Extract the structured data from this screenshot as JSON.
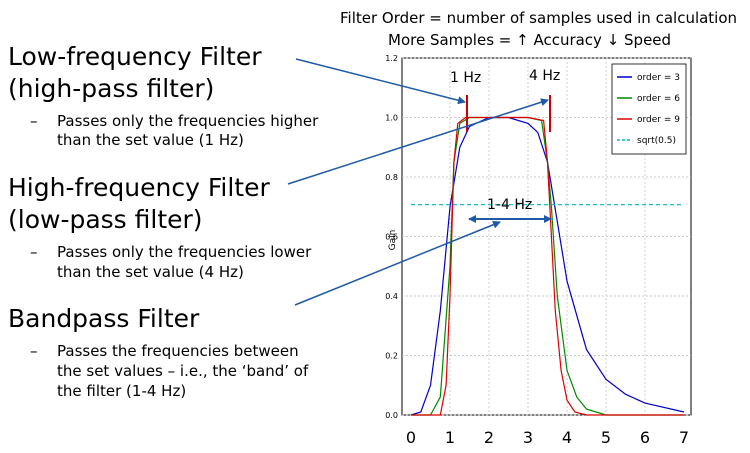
{
  "header": {
    "line1": "Filter Order = number of samples used in calculation",
    "line2": "More Samples = ↑ Accuracy ↓ Speed"
  },
  "sections": [
    {
      "title_line1": "Low-frequency Filter",
      "title_line2": "(high-pass filter)",
      "dash": "–",
      "desc": [
        "Passes only the frequencies higher",
        "than the set value (1 Hz)"
      ]
    },
    {
      "title_line1": "High-frequency Filter",
      "title_line2": "(low-pass filter)",
      "dash": "–",
      "desc": [
        "Passes only the frequencies lower",
        "than the set value (4 Hz)"
      ]
    },
    {
      "title_line1": "Bandpass Filter",
      "title_line2": "",
      "dash": "–",
      "desc": [
        "Passes the frequencies between",
        "the set values – i.e., the ‘band’ of",
        "the filter (1-4 Hz)"
      ]
    }
  ],
  "annotations": {
    "low_cut": "1 Hz",
    "high_cut": "4 Hz",
    "band": "1-4 Hz"
  },
  "chart_data": {
    "type": "line",
    "ylabel": "Gain",
    "ylim": [
      0,
      1.2
    ],
    "y_ticks": [
      "0.0",
      "0.2",
      "0.4",
      "0.6",
      "0.8",
      "1.0",
      "1.2"
    ],
    "x_ticks": [
      "0",
      "1",
      "2",
      "3",
      "4",
      "5",
      "6",
      "7"
    ],
    "xlim": [
      0,
      7
    ],
    "legend_position": "top-right",
    "series": [
      {
        "name": "order = 3",
        "color": "#0000cc",
        "x": [
          0,
          0.25,
          0.5,
          0.75,
          1.0,
          1.25,
          1.5,
          2.0,
          2.5,
          3.0,
          3.25,
          3.5,
          3.75,
          4.0,
          4.5,
          5.0,
          5.5,
          6.0,
          7.0
        ],
        "y": [
          0,
          0.01,
          0.1,
          0.35,
          0.7,
          0.9,
          0.97,
          1.0,
          1.0,
          0.98,
          0.95,
          0.85,
          0.65,
          0.45,
          0.22,
          0.12,
          0.07,
          0.04,
          0.01
        ]
      },
      {
        "name": "order = 6",
        "color": "#008800",
        "x": [
          0,
          0.5,
          0.75,
          1.0,
          1.1,
          1.25,
          1.5,
          2.0,
          3.0,
          3.35,
          3.5,
          3.6,
          3.75,
          4.0,
          4.25,
          4.5,
          5.0,
          7.0
        ],
        "y": [
          0,
          0.0,
          0.06,
          0.5,
          0.85,
          0.98,
          1.0,
          1.0,
          1.0,
          0.99,
          0.85,
          0.7,
          0.4,
          0.15,
          0.06,
          0.02,
          0.0,
          0.0
        ]
      },
      {
        "name": "order = 9",
        "color": "#dd0000",
        "x": [
          0,
          0.75,
          0.9,
          1.0,
          1.1,
          1.2,
          1.4,
          2.0,
          3.0,
          3.4,
          3.5,
          3.6,
          3.7,
          3.85,
          4.0,
          4.2,
          4.5,
          7.0
        ],
        "y": [
          0,
          0.0,
          0.1,
          0.4,
          0.85,
          0.98,
          1.0,
          1.0,
          1.0,
          0.99,
          0.85,
          0.6,
          0.35,
          0.15,
          0.05,
          0.01,
          0.0,
          0.0
        ]
      },
      {
        "name": "sqrt(0.5)",
        "color": "#00bbbb",
        "dashed": true,
        "x": [
          0,
          7
        ],
        "y": [
          0.707,
          0.707
        ]
      }
    ]
  }
}
